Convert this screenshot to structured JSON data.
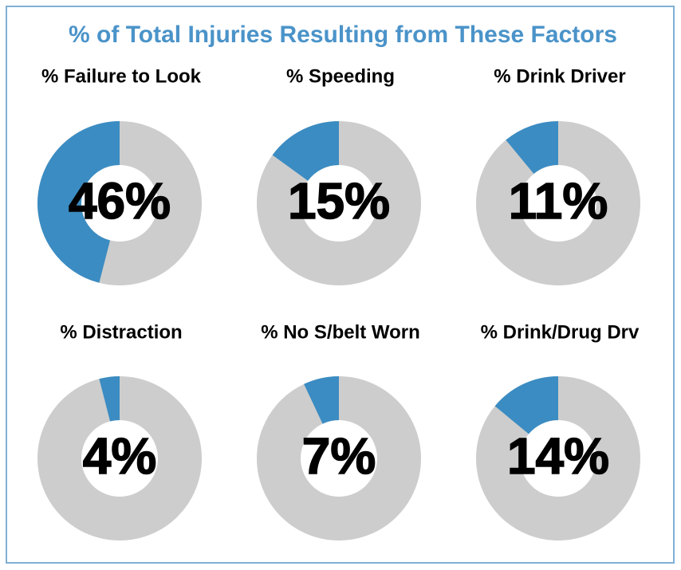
{
  "title": "% of Total Injuries Resulting from These Factors",
  "chart_data": [
    {
      "type": "donut",
      "title": "% Failure to Look",
      "values": [
        46
      ],
      "value_labels": [
        "46%"
      ],
      "total": 100,
      "color": "#3b8cc2",
      "track_color": "#cdcdcd"
    },
    {
      "type": "donut",
      "title": "% Speeding",
      "values": [
        15
      ],
      "value_labels": [
        "15%"
      ],
      "total": 100,
      "color": "#3b8cc2",
      "track_color": "#cdcdcd"
    },
    {
      "type": "donut",
      "title": "% Drink Driver",
      "values": [
        11
      ],
      "value_labels": [
        "11%"
      ],
      "total": 100,
      "color": "#3b8cc2",
      "track_color": "#cdcdcd"
    },
    {
      "type": "donut",
      "title": "% Distraction",
      "values": [
        4
      ],
      "value_labels": [
        "4%"
      ],
      "total": 100,
      "color": "#3b8cc2",
      "track_color": "#cdcdcd"
    },
    {
      "type": "donut",
      "title": "% No S/belt Worn",
      "values": [
        7
      ],
      "value_labels": [
        "7%"
      ],
      "total": 100,
      "color": "#3b8cc2",
      "track_color": "#cdcdcd"
    },
    {
      "type": "donut",
      "title": "% Drink/Drug Drv",
      "values": [
        14
      ],
      "value_labels": [
        "14%"
      ],
      "total": 100,
      "color": "#3b8cc2",
      "track_color": "#cdcdcd"
    }
  ]
}
